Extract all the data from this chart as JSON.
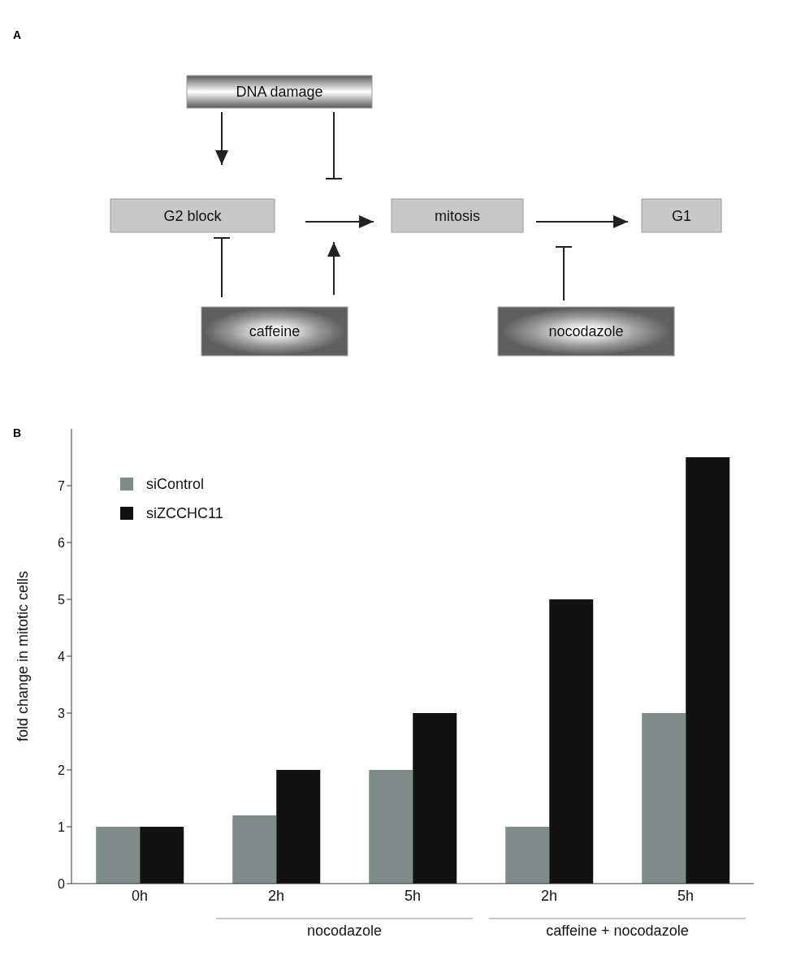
{
  "chart_data": [
    {
      "type": "other",
      "title": "A",
      "annotations": [
        "DNA damage",
        "G2 block",
        "mitosis",
        "G1",
        "caffeine",
        "nocodazole"
      ]
    },
    {
      "type": "bar",
      "title": "B",
      "ylabel": "fold change in mitotic cells",
      "categories": [
        "0h",
        "2h",
        "5h",
        "2h",
        "5h"
      ],
      "series": [
        {
          "name": "siControl",
          "color": "#7f8c8a",
          "values": [
            1,
            1.2,
            2,
            1,
            3
          ]
        },
        {
          "name": "siZCCHC11",
          "color": "#111111",
          "values": [
            1,
            2,
            3,
            5,
            7.5
          ]
        }
      ],
      "ylim": [
        0,
        8
      ],
      "yticks": [
        0,
        1,
        2,
        3,
        4,
        5,
        6,
        7
      ],
      "legend": "top left",
      "grid": false,
      "annotations": [
        "nocodazole",
        "caffeine + nocodazole"
      ]
    }
  ]
}
